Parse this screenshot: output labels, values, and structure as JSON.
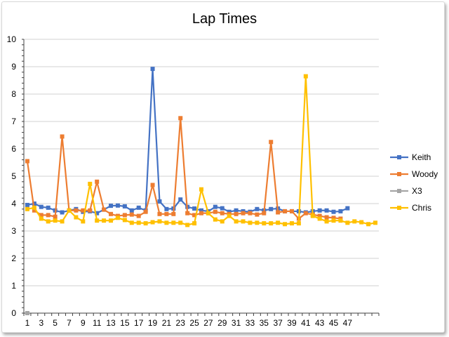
{
  "chart_data": {
    "type": "line",
    "title": "Lap Times",
    "xlabel": "",
    "ylabel": "",
    "ylim": [
      0,
      10
    ],
    "yticks": [
      0,
      1,
      2,
      3,
      4,
      5,
      6,
      7,
      8,
      9,
      10
    ],
    "xticks": [
      1,
      3,
      5,
      7,
      9,
      11,
      13,
      15,
      17,
      19,
      21,
      23,
      25,
      27,
      29,
      31,
      33,
      35,
      37,
      39,
      41,
      43,
      45,
      47
    ],
    "x_count": 51,
    "grid": true,
    "legend": "right",
    "series": [
      {
        "name": "Keith",
        "color": "#4472C4",
        "values": [
          3.95,
          4.0,
          3.88,
          3.85,
          3.75,
          3.68,
          3.75,
          3.8,
          3.7,
          3.72,
          3.65,
          3.78,
          3.92,
          3.93,
          3.9,
          3.75,
          3.85,
          3.75,
          8.92,
          4.08,
          3.8,
          3.82,
          4.15,
          3.88,
          3.82,
          3.75,
          3.72,
          3.88,
          3.83,
          3.7,
          3.75,
          3.72,
          3.7,
          3.8,
          3.75,
          3.8,
          3.82,
          3.72,
          3.72,
          3.72,
          3.68,
          3.72,
          3.75,
          3.75,
          3.7,
          3.72,
          3.83
        ]
      },
      {
        "name": "Woody",
        "color": "#ED7D31",
        "values": [
          5.55,
          3.75,
          3.58,
          3.58,
          3.52,
          6.45,
          3.75,
          3.75,
          3.75,
          3.75,
          4.8,
          3.78,
          3.62,
          3.55,
          3.58,
          3.6,
          3.55,
          3.7,
          4.68,
          3.62,
          3.62,
          3.62,
          7.12,
          3.65,
          3.58,
          3.65,
          3.65,
          3.7,
          3.65,
          3.62,
          3.62,
          3.65,
          3.65,
          3.6,
          3.65,
          6.25,
          3.68,
          3.72,
          3.72,
          3.45,
          3.65,
          3.6,
          3.55,
          3.5,
          3.48,
          3.45
        ]
      },
      {
        "name": "X3",
        "color": "#A5A5A5",
        "values": [
          0
        ]
      },
      {
        "name": "Chris",
        "color": "#FFC000",
        "values": [
          3.8,
          3.85,
          3.45,
          3.35,
          3.38,
          3.35,
          3.75,
          3.5,
          3.35,
          4.72,
          3.38,
          3.38,
          3.38,
          3.48,
          3.4,
          3.3,
          3.3,
          3.28,
          3.32,
          3.35,
          3.3,
          3.3,
          3.3,
          3.22,
          3.28,
          4.52,
          3.65,
          3.42,
          3.35,
          3.55,
          3.35,
          3.35,
          3.3,
          3.3,
          3.28,
          3.28,
          3.3,
          3.25,
          3.28,
          3.28,
          8.65,
          3.55,
          3.45,
          3.35,
          3.38,
          3.38,
          3.3,
          3.35,
          3.32,
          3.25,
          3.3
        ]
      }
    ]
  }
}
